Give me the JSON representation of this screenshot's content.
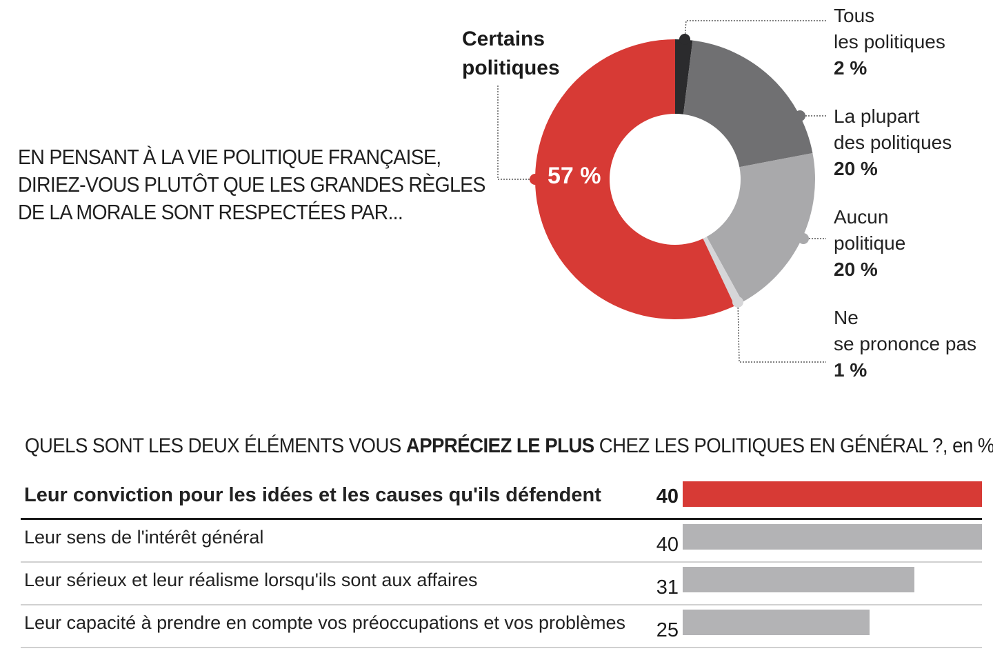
{
  "donut": {
    "question": [
      "EN PENSANT À LA VIE POLITIQUE FRANÇAISE,",
      "DIRIEZ-VOUS PLUTÔT QUE LES GRANDES RÈGLES",
      "DE LA MORALE SONT RESPECTÉES PAR..."
    ],
    "main_label": [
      "Certains",
      "politiques"
    ],
    "main_pct": "57 %",
    "labels": [
      {
        "lines": [
          "Tous",
          "les politiques"
        ],
        "pct": "2 %"
      },
      {
        "lines": [
          "La plupart",
          "des politiques"
        ],
        "pct": "20 %"
      },
      {
        "lines": [
          "Aucun",
          "politique"
        ],
        "pct": "20 %"
      },
      {
        "lines": [
          "Ne",
          "se prononce pas"
        ],
        "pct": "1 %"
      }
    ]
  },
  "bars": {
    "title_pre": "QUELS SONT LES DEUX ÉLÉMENTS VOUS ",
    "title_bold": "APPRÉCIEZ LE PLUS",
    "title_post": " CHEZ LES POLITIQUES EN GÉNÉRAL ?, en %"
  },
  "colors": {
    "red": "#d73a35",
    "dark": "#2b2b2d",
    "mid_gray": "#707072",
    "light_gray": "#a9a9ab",
    "pale_gray": "#d6d6d8",
    "bar_gray": "#b3b3b5"
  },
  "chart_data": [
    {
      "type": "pie",
      "title": "EN PENSANT À LA VIE POLITIQUE FRANÇAISE, DIRIEZ-VOUS PLUTÔT QUE LES GRANDES RÈGLES DE LA MORALE SONT RESPECTÉES PAR...",
      "categories": [
        "Tous les politiques",
        "La plupart des politiques",
        "Aucun politique",
        "Ne se prononce pas",
        "Certains politiques"
      ],
      "values": [
        2,
        20,
        20,
        1,
        57
      ],
      "unit": "%"
    },
    {
      "type": "bar",
      "title": "QUELS SONT LES DEUX ÉLÉMENTS VOUS APPRÉCIEZ LE PLUS CHEZ LES POLITIQUES EN GÉNÉRAL ?, en %",
      "categories": [
        "Leur conviction pour les idées et les causes qu'ils défendent",
        "Leur sens de l'intérêt général",
        "Leur sérieux et leur réalisme lorsqu'ils sont aux affaires",
        "Leur capacité à prendre en compte vos préoccupations et vos problèmes"
      ],
      "values": [
        40,
        40,
        31,
        25
      ],
      "highlight_index": 0,
      "xlim": [
        0,
        40
      ]
    }
  ]
}
